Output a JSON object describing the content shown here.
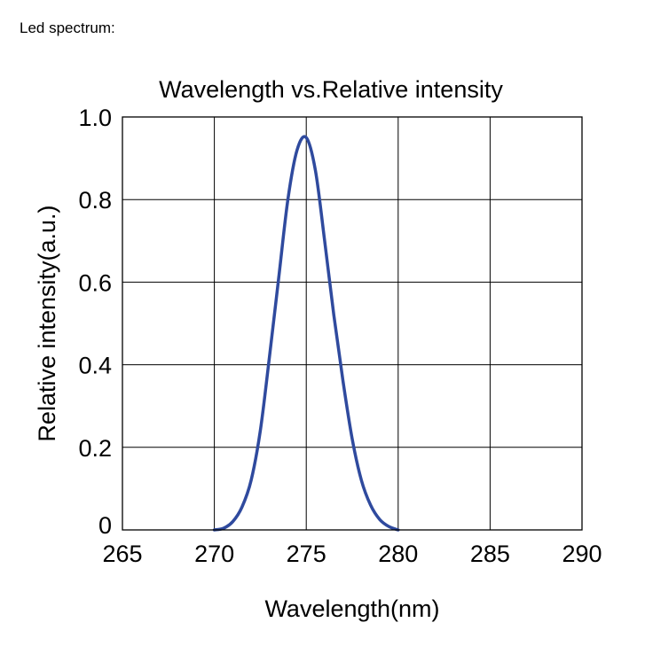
{
  "caption": "Led spectrum:",
  "chart_data": {
    "type": "line",
    "title": "Wavelength vs.Relative intensity",
    "xlabel": "Wavelength(nm)",
    "ylabel": "Relative intensity(a.u.)",
    "xlim": [
      265,
      290
    ],
    "ylim": [
      0,
      1.0
    ],
    "xticks": [
      265,
      270,
      275,
      280,
      285,
      290
    ],
    "xtick_labels": [
      "265",
      "270",
      "275",
      "280",
      "285",
      "290"
    ],
    "yticks": [
      0,
      0.2,
      0.4,
      0.6,
      0.8,
      1.0
    ],
    "ytick_labels": [
      "0",
      "0.2",
      "0.4",
      "0.6",
      "0.8",
      "1.0"
    ],
    "grid": true,
    "series_color": "#2f4a9e",
    "series": [
      {
        "x": [
          270.0,
          270.5,
          271.0,
          271.5,
          272.0,
          272.5,
          273.0,
          273.5,
          274.0,
          274.5,
          275.0,
          275.5,
          276.0,
          276.5,
          277.0,
          277.5,
          278.0,
          278.5,
          279.0,
          279.5,
          280.0
        ],
        "y": [
          0.0,
          0.004,
          0.02,
          0.055,
          0.12,
          0.24,
          0.42,
          0.61,
          0.8,
          0.92,
          0.95,
          0.87,
          0.7,
          0.52,
          0.36,
          0.22,
          0.12,
          0.06,
          0.025,
          0.008,
          0.0
        ]
      }
    ]
  }
}
